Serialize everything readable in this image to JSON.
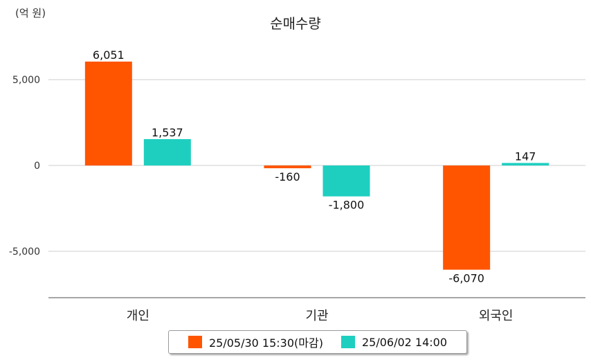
{
  "unit_label": "(억 원)",
  "colors": {
    "series1": "#FF5500",
    "series2": "#1ECFC0",
    "grid": "#cccccc",
    "axis": "#888888"
  },
  "chart_data": {
    "type": "bar",
    "title": "순매수량",
    "xlabel": "",
    "ylabel": "",
    "categories": [
      "개인",
      "기관",
      "외국인"
    ],
    "series": [
      {
        "name": "25/05/30 15:30(마감)",
        "values": [
          6051,
          -160,
          -6070
        ],
        "labels": [
          "6,051",
          "-160",
          "-6,070"
        ]
      },
      {
        "name": "25/06/02 14:00",
        "values": [
          1537,
          -1800,
          147
        ],
        "labels": [
          "1,537",
          "-1,800",
          "147"
        ]
      }
    ],
    "yticks": [
      5000,
      0,
      -5000
    ],
    "ytick_labels": [
      "5,000",
      "0",
      "-5,000"
    ],
    "ylim": [
      -7700,
      7300
    ],
    "grid": true,
    "legend": "bottom"
  }
}
